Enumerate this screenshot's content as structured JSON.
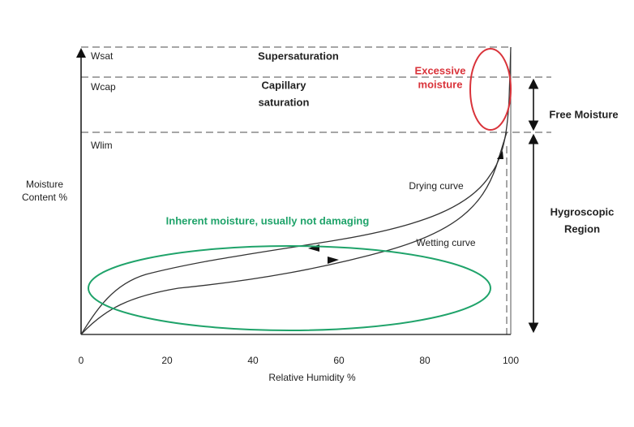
{
  "y_axis": {
    "label_lines": [
      "Moisture",
      "Content %"
    ],
    "levels": [
      "Wsat",
      "Wcap",
      "Wlim"
    ]
  },
  "x_axis": {
    "label": "Relative Humidity %",
    "ticks": [
      "0",
      "20",
      "40",
      "60",
      "80",
      "100"
    ]
  },
  "regions": {
    "supersaturation": "Supersaturation",
    "capillary_lines": [
      "Capillary",
      "saturation"
    ],
    "excessive_lines": [
      "Excessive",
      "moisture"
    ],
    "free_moisture": "Free Moisture",
    "hygroscopic_lines": [
      "Hygroscopic",
      "Region"
    ],
    "inherent": "Inherent moisture, usually not damaging"
  },
  "curves": {
    "drying": "Drying curve",
    "wetting": "Wetting curve"
  }
}
